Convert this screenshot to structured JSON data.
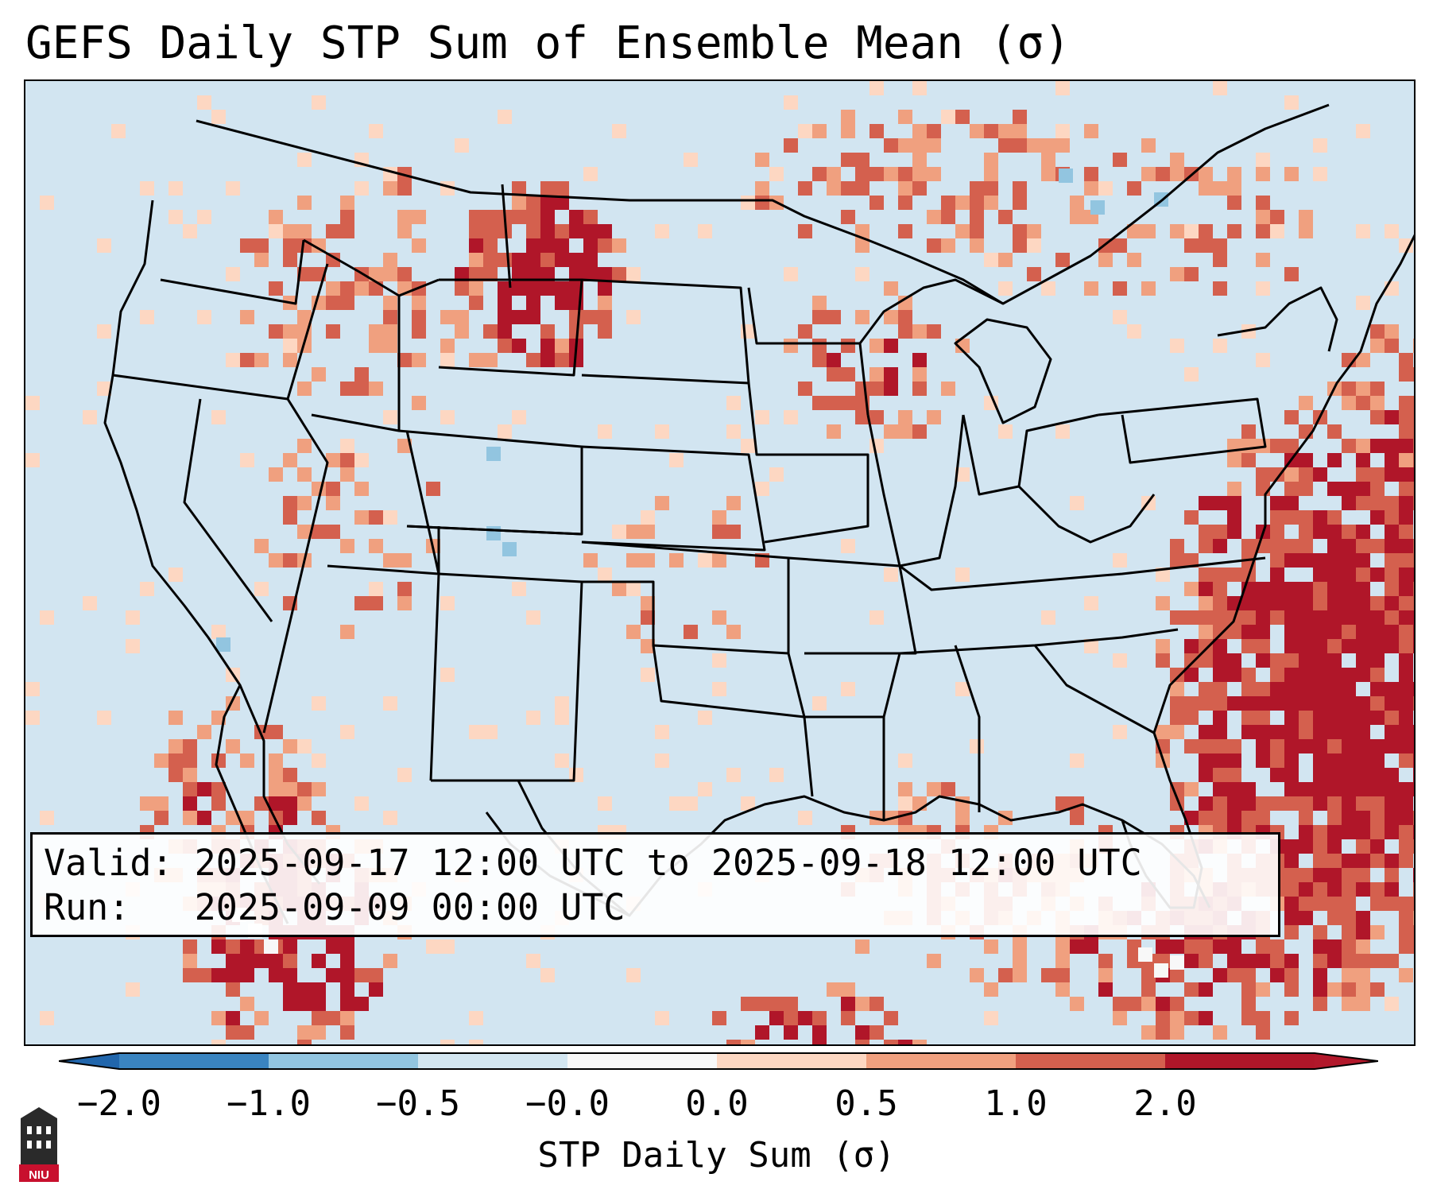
{
  "title": "GEFS Daily STP Sum of Ensemble Mean (σ)",
  "info": {
    "valid": "Valid: 2025-09-17 12:00 UTC to 2025-09-18 12:00 UTC",
    "run": "Run:   2025-09-09 00:00 UTC"
  },
  "colorbar": {
    "label": "STP Daily Sum (σ)",
    "ticks": [
      "−2.0",
      "−1.0",
      "−0.5",
      "−0.0",
      "0.0",
      "0.5",
      "1.0",
      "2.0"
    ],
    "segment_colors": [
      "#3a84c0",
      "#92c5e0",
      "#d3e6f1",
      "#f8f8f8",
      "#fdd7c2",
      "#f0a07f",
      "#d4604e",
      "#b01629"
    ],
    "extend_low_color": "#2166ac",
    "extend_high_color": "#b2182b"
  },
  "map_colors": {
    "background": "#d2e5f1",
    "pale": "#fdd7c2",
    "light": "#f0a07f",
    "medium": "#d4604e",
    "dark": "#b01629",
    "blue": "#92c5e0",
    "white": "#f8f8f8"
  },
  "logo": {
    "text": "NIU",
    "icon": "niu-tower-icon"
  }
}
